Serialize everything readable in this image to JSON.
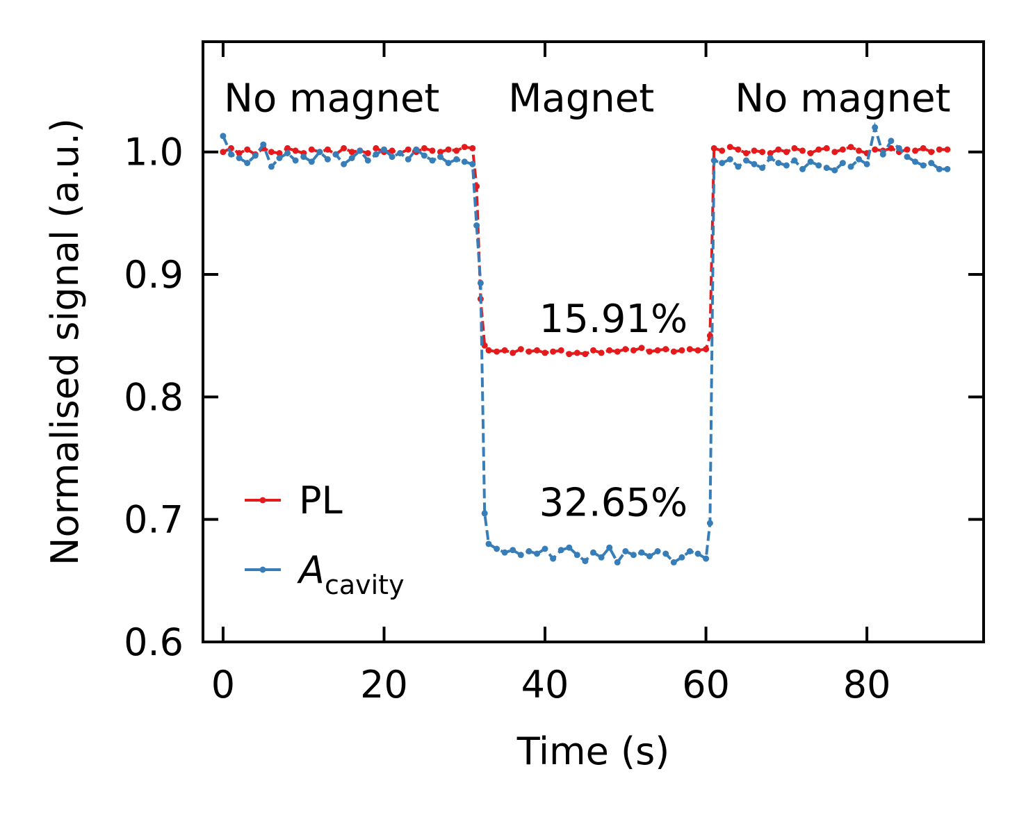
{
  "chart_data": {
    "type": "line",
    "xlabel": "Time (s)",
    "ylabel": "Normalised signal (a.u.)",
    "xlim": [
      -2.5,
      94.5
    ],
    "ylim": [
      0.6,
      1.09
    ],
    "xticks": [
      0,
      20,
      40,
      60,
      80
    ],
    "xtick_labels": [
      "0",
      "20",
      "40",
      "60",
      "80"
    ],
    "yticks": [
      0.6,
      0.7,
      0.8,
      0.9,
      1.0
    ],
    "ytick_labels": [
      "0.6",
      "0.7",
      "0.8",
      "0.9",
      "1.0"
    ],
    "grid": false,
    "legend_position": "bottom-left",
    "annotations": [
      {
        "text": "No magnet",
        "x": 13.5,
        "y": 1.033
      },
      {
        "text": "Magnet",
        "x": 44.5,
        "y": 1.033
      },
      {
        "text": "No magnet",
        "x": 77,
        "y": 1.033
      },
      {
        "text": "15.91%",
        "x": 48.5,
        "y": 0.853
      },
      {
        "text": "32.65%",
        "x": 48.5,
        "y": 0.703
      }
    ],
    "series": [
      {
        "name": "PL",
        "name_subscript": "",
        "color": "#e41a1c",
        "line_style": "dashed",
        "x": [
          0,
          1,
          2,
          3,
          4,
          5,
          6,
          7,
          8,
          9,
          10,
          11,
          12,
          13,
          14,
          15,
          16,
          17,
          18,
          19,
          20,
          21,
          22,
          23,
          24,
          25,
          26,
          27,
          28,
          29,
          30,
          31,
          31.5,
          32,
          32.5,
          33,
          34,
          35,
          36,
          37,
          38,
          39,
          40,
          41,
          42,
          43,
          44,
          45,
          46,
          47,
          48,
          49,
          50,
          51,
          52,
          53,
          54,
          55,
          56,
          57,
          58,
          59,
          60,
          60.5,
          61,
          62,
          63,
          64,
          65,
          66,
          67,
          68,
          69,
          70,
          71,
          72,
          73,
          74,
          75,
          76,
          77,
          78,
          79,
          80,
          81,
          82,
          83,
          84,
          85,
          86,
          87,
          88,
          89,
          90
        ],
        "y": [
          1.0,
          1.003,
          0.999,
          1.002,
          0.998,
          1.003,
          1.0,
          0.999,
          1.003,
          1.001,
          0.999,
          1.002,
          1.0,
          1.002,
          0.998,
          1.003,
          1.0,
          1.001,
          0.999,
          1.003,
          1.0,
          1.001,
          0.999,
          1.002,
          1.0,
          1.003,
          1.001,
          1.0,
          1.002,
          1.001,
          1.004,
          1.003,
          0.972,
          0.88,
          0.842,
          0.838,
          0.837,
          0.838,
          0.836,
          0.839,
          0.837,
          0.838,
          0.836,
          0.837,
          0.838,
          0.835,
          0.836,
          0.835,
          0.838,
          0.836,
          0.838,
          0.837,
          0.839,
          0.838,
          0.84,
          0.837,
          0.838,
          0.839,
          0.837,
          0.838,
          0.839,
          0.838,
          0.839,
          0.85,
          1.003,
          1.001,
          1.004,
          1.002,
          0.999,
          1.001,
          1.0,
          0.999,
          1.002,
          1.0,
          1.003,
          1.001,
          0.999,
          1.002,
          1.003,
          1.0,
          1.002,
          1.004,
          1.001,
          0.999,
          1.002,
          1.001,
          1.003,
          1.0,
          1.002,
          1.001,
          1.003,
          1.0,
          1.002,
          1.002
        ]
      },
      {
        "name": "A",
        "name_subscript": "cavity",
        "color": "#377eb8",
        "line_style": "dashed",
        "x": [
          0,
          1,
          2,
          3,
          4,
          5,
          6,
          7,
          8,
          9,
          10,
          11,
          12,
          13,
          14,
          15,
          16,
          17,
          18,
          19,
          20,
          21,
          22,
          23,
          24,
          25,
          26,
          27,
          28,
          29,
          30,
          31,
          31.5,
          32,
          32.5,
          33,
          34,
          35,
          36,
          37,
          38,
          39,
          40,
          41,
          42,
          43,
          44,
          45,
          46,
          47,
          48,
          49,
          50,
          51,
          52,
          53,
          54,
          55,
          56,
          57,
          58,
          59,
          60,
          60.5,
          61,
          62,
          63,
          64,
          65,
          66,
          67,
          68,
          69,
          70,
          71,
          72,
          73,
          74,
          75,
          76,
          77,
          78,
          79,
          80,
          81,
          82,
          83,
          84,
          85,
          86,
          87,
          88,
          89,
          90
        ],
        "y": [
          1.013,
          0.998,
          0.995,
          0.991,
          0.997,
          1.006,
          0.988,
          0.995,
          0.999,
          0.993,
          0.996,
          0.992,
          1.0,
          0.994,
          0.998,
          0.99,
          0.995,
          1.001,
          0.993,
          0.998,
          1.002,
          0.996,
          0.999,
          0.994,
          1.002,
          0.997,
          0.993,
          0.996,
          0.991,
          0.994,
          0.992,
          0.99,
          0.94,
          0.893,
          0.705,
          0.68,
          0.676,
          0.673,
          0.675,
          0.671,
          0.674,
          0.672,
          0.676,
          0.668,
          0.675,
          0.677,
          0.671,
          0.666,
          0.673,
          0.669,
          0.677,
          0.665,
          0.674,
          0.671,
          0.673,
          0.67,
          0.674,
          0.672,
          0.665,
          0.669,
          0.674,
          0.672,
          0.668,
          0.697,
          0.993,
          0.991,
          0.994,
          0.988,
          0.993,
          0.99,
          0.987,
          0.995,
          0.991,
          0.989,
          0.993,
          0.986,
          0.992,
          0.989,
          0.987,
          0.985,
          0.991,
          0.988,
          0.994,
          0.99,
          1.02,
          0.998,
          1.009,
          1.003,
          0.996,
          0.992,
          0.989,
          0.991,
          0.986,
          0.986
        ]
      }
    ]
  }
}
